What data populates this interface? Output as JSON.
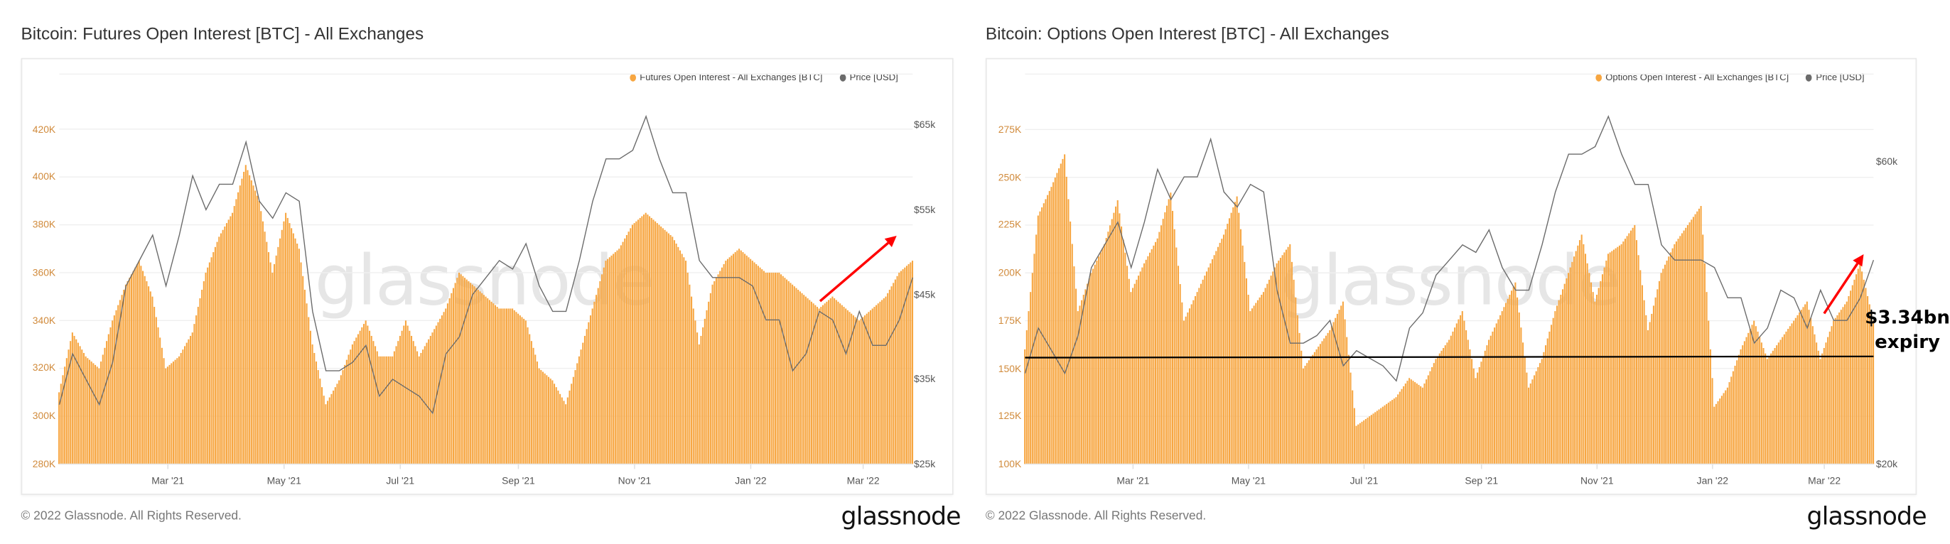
{
  "footer": {
    "copyright": "© 2022 Glassnode. All Rights Reserved.",
    "logo": "glassnode"
  },
  "watermark": "glassnode",
  "colors": {
    "oi_bar": "#f7a641",
    "price_line": "#6b6b6b",
    "arrow": "#ff0000",
    "hline": "#000000"
  },
  "chart_data": [
    {
      "type": "bar+line",
      "title": "Bitcoin: Futures Open Interest [BTC] - All Exchanges",
      "x_start": "2021-01-03",
      "x_end": "2022-03-27",
      "x_step_days": 7,
      "x_ticks": [
        {
          "date": "2021-03-01",
          "label": "Mar '21"
        },
        {
          "date": "2021-05-01",
          "label": "May '21"
        },
        {
          "date": "2021-07-01",
          "label": "Jul '21"
        },
        {
          "date": "2021-09-01",
          "label": "Sep '21"
        },
        {
          "date": "2021-11-01",
          "label": "Nov '21"
        },
        {
          "date": "2022-01-01",
          "label": "Jan '22"
        },
        {
          "date": "2022-03-01",
          "label": "Mar '22"
        }
      ],
      "y_left": {
        "unit": "K BTC",
        "range": [
          280,
          443
        ],
        "ticks": [
          280,
          300,
          320,
          340,
          360,
          380,
          400,
          420
        ],
        "tick_labels": [
          "280K",
          "300K",
          "320K",
          "340K",
          "360K",
          "380K",
          "400K",
          "420K"
        ]
      },
      "y_right": {
        "unit": "k USD",
        "range": [
          25,
          71
        ],
        "ticks": [
          25,
          35,
          45,
          55,
          65
        ],
        "tick_labels": [
          "$25k",
          "$35k",
          "$45k",
          "$55k",
          "$65k"
        ]
      },
      "legend": [
        "Futures Open Interest - All Exchanges [BTC]",
        "Price [USD]"
      ],
      "legend_position": "top-right",
      "series": [
        {
          "name": "Futures Open Interest - All Exchanges [BTC]",
          "type": "bar",
          "axis": "left",
          "values": [
            310,
            335,
            325,
            320,
            340,
            355,
            365,
            350,
            320,
            325,
            335,
            360,
            375,
            385,
            405,
            390,
            360,
            385,
            370,
            330,
            305,
            315,
            330,
            340,
            325,
            325,
            340,
            325,
            335,
            345,
            360,
            355,
            350,
            345,
            345,
            340,
            320,
            315,
            305,
            325,
            345,
            365,
            370,
            380,
            385,
            380,
            375,
            365,
            330,
            355,
            365,
            370,
            365,
            360,
            360,
            355,
            350,
            345,
            350,
            345,
            340,
            345,
            350,
            360,
            365
          ]
        },
        {
          "name": "Price [USD]",
          "type": "line",
          "axis": "right",
          "values": [
            32,
            38,
            35,
            32,
            37,
            46,
            49,
            52,
            46,
            52,
            59,
            55,
            58,
            58,
            63,
            56,
            54,
            57,
            56,
            43,
            36,
            36,
            37,
            39,
            33,
            35,
            34,
            33,
            31,
            38,
            40,
            45,
            47,
            49,
            48,
            51,
            46,
            43,
            43,
            49,
            56,
            61,
            61,
            62,
            66,
            61,
            57,
            57,
            49,
            47,
            47,
            47,
            46,
            42,
            42,
            36,
            38,
            43,
            42,
            38,
            43,
            39,
            39,
            42,
            47
          ]
        }
      ],
      "annotations": {
        "arrow": "rising OI into late March"
      }
    },
    {
      "type": "bar+line",
      "title": "Bitcoin: Options Open Interest [BTC] - All Exchanges",
      "x_start": "2021-01-03",
      "x_end": "2022-03-27",
      "x_step_days": 7,
      "x_ticks": [
        {
          "date": "2021-03-01",
          "label": "Mar '21"
        },
        {
          "date": "2021-05-01",
          "label": "May '21"
        },
        {
          "date": "2021-07-01",
          "label": "Jul '21"
        },
        {
          "date": "2021-09-01",
          "label": "Sep '21"
        },
        {
          "date": "2021-11-01",
          "label": "Nov '21"
        },
        {
          "date": "2022-01-01",
          "label": "Jan '22"
        },
        {
          "date": "2022-03-01",
          "label": "Mar '22"
        }
      ],
      "y_left": {
        "unit": "K BTC",
        "range": [
          100,
          304
        ],
        "ticks": [
          100,
          125,
          150,
          175,
          200,
          225,
          250,
          275
        ],
        "tick_labels": [
          "100K",
          "125K",
          "150K",
          "175K",
          "200K",
          "225K",
          "250K",
          "275K"
        ]
      },
      "y_right": {
        "unit": "k USD",
        "range": [
          20,
          71.6
        ],
        "ticks": [
          20,
          60
        ],
        "tick_labels": [
          "$20k",
          "$60k"
        ]
      },
      "legend": [
        "Options Open Interest - All Exchanges [BTC]",
        "Price [USD]"
      ],
      "legend_position": "top-right",
      "series": [
        {
          "name": "Options Open Interest - All Exchanges [BTC]",
          "type": "bar",
          "axis": "left",
          "values": [
            160,
            230,
            245,
            262,
            180,
            200,
            215,
            238,
            190,
            205,
            218,
            242,
            175,
            190,
            205,
            220,
            240,
            180,
            190,
            205,
            215,
            150,
            160,
            170,
            185,
            120,
            125,
            130,
            135,
            145,
            140,
            155,
            165,
            180,
            145,
            165,
            180,
            195,
            140,
            155,
            180,
            200,
            220,
            185,
            210,
            215,
            225,
            170,
            200,
            215,
            225,
            235,
            130,
            140,
            160,
            175,
            155,
            165,
            175,
            185,
            155,
            175,
            185,
            205,
            175
          ]
        },
        {
          "name": "Price [USD]",
          "type": "line",
          "axis": "right",
          "values": [
            32,
            38,
            35,
            32,
            37,
            46,
            49,
            52,
            46,
            52,
            59,
            55,
            58,
            58,
            63,
            56,
            54,
            57,
            56,
            43,
            36,
            36,
            37,
            39,
            33,
            35,
            34,
            33,
            31,
            38,
            40,
            45,
            47,
            49,
            48,
            51,
            46,
            43,
            43,
            49,
            56,
            61,
            61,
            62,
            66,
            61,
            57,
            57,
            49,
            47,
            47,
            47,
            46,
            42,
            42,
            36,
            38,
            43,
            42,
            38,
            43,
            39,
            39,
            42,
            47
          ]
        }
      ],
      "annotations": {
        "hline_value": 156,
        "label_line1": "$3.34bn",
        "label_line2": "expiry"
      }
    }
  ]
}
